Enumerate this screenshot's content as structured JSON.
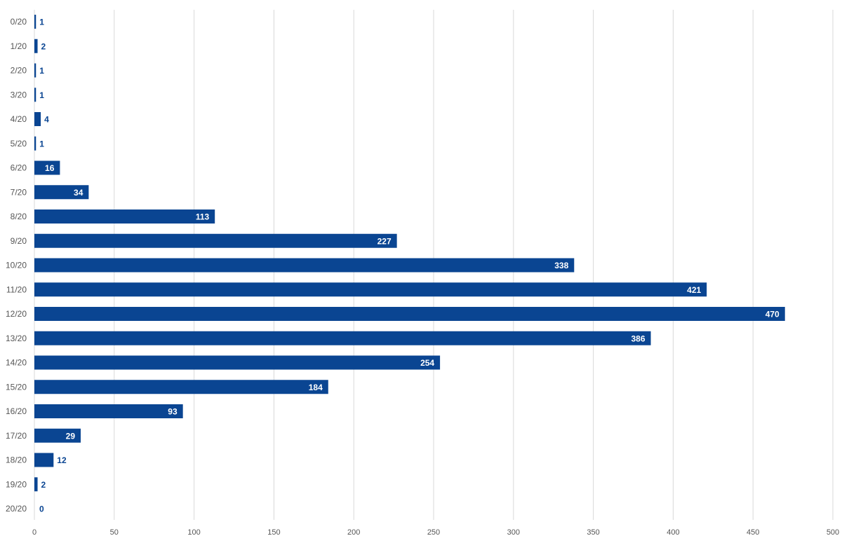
{
  "chart_data": {
    "type": "bar",
    "orientation": "horizontal",
    "categories": [
      "0/20",
      "1/20",
      "2/20",
      "3/20",
      "4/20",
      "5/20",
      "6/20",
      "7/20",
      "8/20",
      "9/20",
      "10/20",
      "11/20",
      "12/20",
      "13/20",
      "14/20",
      "15/20",
      "16/20",
      "17/20",
      "18/20",
      "19/20",
      "20/20"
    ],
    "values": [
      1,
      2,
      1,
      1,
      4,
      1,
      16,
      34,
      113,
      227,
      338,
      421,
      470,
      386,
      254,
      184,
      93,
      29,
      12,
      2,
      0
    ],
    "data_labels": [
      "1",
      "2",
      "1",
      "1",
      "4",
      "1",
      "16",
      "34",
      "113",
      "227",
      "338",
      "421",
      "470",
      "386",
      "254",
      "184",
      "93",
      "29",
      "12",
      "2",
      "0"
    ],
    "xlim": [
      0,
      500
    ],
    "x_ticks": [
      0,
      50,
      100,
      150,
      200,
      250,
      300,
      350,
      400,
      450,
      500
    ],
    "x_tick_labels": [
      "0",
      "50",
      "100",
      "150",
      "200",
      "250",
      "300",
      "350",
      "400",
      "450",
      "500"
    ],
    "grid": "vertical",
    "legend": "none",
    "bar_color": "#0a4592",
    "label_inside_color": "#ffffff",
    "label_outside_color": "#0a4592"
  }
}
